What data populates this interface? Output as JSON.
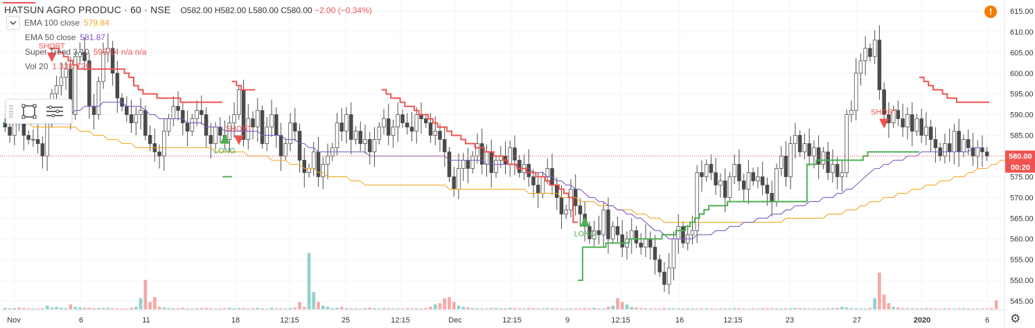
{
  "header": {
    "title": "HATSUN AGRO PRODUC · 60 · NSE",
    "open": "O582.00",
    "high": "H582.00",
    "low": "L580.00",
    "close": "C580.00",
    "change": "−2.00 (−0.34%)"
  },
  "indicators": [
    {
      "name": "EMA 100 close",
      "value": "579.84",
      "color": "#f5a623"
    },
    {
      "name": "EMA 50 close",
      "value": "581.87",
      "color": "#7e57c2"
    },
    {
      "name": "Super Trend 3 10",
      "value": "593.14  n/a  n/a",
      "color": "#ef5350"
    },
    {
      "name": "Vol 20",
      "value": "1.33K  729",
      "color": "#ef5350"
    }
  ],
  "price_axis": {
    "ticks": [
      "615.00",
      "610.00",
      "605.00",
      "600.00",
      "595.00",
      "590.00",
      "585.00",
      "580.00",
      "575.00",
      "570.00",
      "565.00",
      "560.00",
      "555.00",
      "550.00",
      "545.00"
    ],
    "last_price_label": "580.00",
    "countdown_label": "00:20",
    "last_price_color": "#ef5350"
  },
  "time_axis": {
    "labels": [
      "Nov",
      "6",
      "11",
      "18",
      "12:15",
      "25",
      "12:15",
      "Dec",
      "12:15",
      "9",
      "12:15",
      "16",
      "12:15",
      "23",
      "27",
      "2020",
      "6"
    ]
  },
  "signals": [
    {
      "label": "SHORT",
      "kind": "short",
      "color": "#ef5350"
    },
    {
      "label": "LONG",
      "kind": "long",
      "color": "#4caf50"
    },
    {
      "label": "SHORT",
      "kind": "short",
      "color": "#ef5350"
    },
    {
      "label": "LONG",
      "kind": "long",
      "color": "#4caf50"
    },
    {
      "label": "SHORT",
      "kind": "short",
      "color": "#ef5350"
    }
  ],
  "chart_data": {
    "type": "candlestick",
    "symbol": "HATSUN AGRO PRODUC",
    "interval": "60",
    "exchange": "NSE",
    "ylim": [
      543,
      617
    ],
    "last_price": 580.0,
    "up_color": "#26a69a",
    "down_color": "#ef5350",
    "candle_body_color": "#4a4a4a",
    "closes": [
      587,
      585,
      590,
      589,
      585,
      584,
      584,
      583,
      580,
      588,
      595,
      597,
      599,
      601,
      590,
      604,
      605,
      603,
      592,
      590,
      598,
      605,
      606,
      600,
      594,
      592,
      590,
      588,
      590,
      591,
      585,
      583,
      581,
      580,
      586,
      589,
      592,
      591,
      588,
      586,
      589,
      591,
      590,
      585,
      583,
      587,
      585,
      584,
      588,
      590,
      596,
      584,
      589,
      587,
      591,
      583,
      587,
      590,
      585,
      580,
      583,
      588,
      586,
      579,
      576,
      577,
      581,
      575,
      578,
      580,
      582,
      588,
      586,
      590,
      584,
      586,
      583,
      584,
      581,
      584,
      587,
      589,
      585,
      587,
      590,
      588,
      587,
      586,
      590,
      589,
      588,
      585,
      586,
      584,
      581,
      575,
      572,
      577,
      579,
      577,
      580,
      583,
      578,
      581,
      576,
      579,
      580,
      578,
      582,
      579,
      576,
      578,
      575,
      573,
      571,
      575,
      577,
      573,
      570,
      566,
      567,
      572,
      568,
      566,
      563,
      560,
      562,
      561,
      567,
      560,
      563,
      561,
      558,
      560,
      562,
      559,
      558,
      560,
      558,
      555,
      552,
      549,
      553,
      560,
      563,
      559,
      561,
      562,
      576,
      575,
      578,
      576,
      573,
      574,
      570,
      575,
      578,
      574,
      572,
      576,
      574,
      575,
      573,
      571,
      569,
      577,
      580,
      575,
      583,
      585,
      581,
      583,
      580,
      582,
      578,
      581,
      576,
      578,
      575,
      576,
      590,
      591,
      600,
      603,
      606,
      604,
      608,
      596,
      590,
      588,
      591,
      589,
      587,
      590,
      586,
      589,
      585,
      587,
      584,
      582,
      580,
      583,
      581,
      586,
      581,
      584,
      582,
      580,
      582,
      581,
      580
    ],
    "volumes": [
      120,
      80,
      90,
      150,
      100,
      80,
      70,
      60,
      90,
      300,
      150,
      200,
      120,
      90,
      400,
      200,
      150,
      130,
      120,
      90,
      100,
      110,
      120,
      90,
      80,
      70,
      60,
      130,
      200,
      900,
      2400,
      600,
      1000,
      200,
      150,
      100,
      90,
      80,
      120,
      70,
      60,
      90,
      110,
      100,
      80,
      60,
      70,
      90,
      130,
      80,
      110,
      100,
      60,
      90,
      110,
      80,
      60,
      120,
      90,
      80,
      70,
      100,
      140,
      600,
      200,
      4600,
      1400,
      600,
      300,
      200,
      100,
      120,
      200,
      90,
      80,
      70,
      60,
      110,
      130,
      90,
      80,
      100,
      90,
      80,
      70,
      60,
      90,
      70,
      80,
      60,
      110,
      200,
      400,
      500,
      900,
      1000,
      600,
      300,
      200,
      150,
      100,
      90,
      80,
      70,
      110,
      100,
      90,
      80,
      120,
      90,
      80,
      70,
      110,
      90,
      80,
      70,
      100,
      90,
      80,
      70,
      60,
      90,
      80,
      70,
      100,
      90,
      120,
      80,
      70,
      200,
      300,
      900,
      600,
      400,
      200,
      150,
      100,
      90,
      80,
      70,
      60,
      100,
      90,
      80,
      70,
      60,
      80,
      70,
      60,
      90,
      80,
      70,
      60,
      80,
      70,
      60,
      90,
      80,
      70,
      60,
      80,
      70,
      100,
      90,
      80,
      70,
      60,
      80,
      90,
      110,
      100,
      90,
      80,
      70,
      60,
      80,
      90,
      100,
      110,
      200,
      150,
      100,
      80,
      70,
      60,
      110,
      900,
      3000,
      1200,
      500,
      200,
      150,
      100,
      90,
      80,
      70,
      60,
      90,
      80,
      70,
      60,
      80,
      70,
      60,
      90,
      80,
      70,
      60,
      80,
      70,
      60,
      90,
      729
    ],
    "ema100": [
      590,
      589,
      589,
      588,
      588,
      588,
      587,
      587,
      587,
      587,
      587,
      587,
      587,
      587,
      587,
      587,
      586,
      586,
      586,
      585,
      585,
      585,
      584,
      584,
      584,
      583,
      583,
      583,
      582,
      582,
      582,
      582,
      582,
      582,
      582,
      582,
      582,
      582,
      582,
      582,
      582,
      582,
      582,
      582,
      582,
      581,
      581,
      581,
      581,
      581,
      581,
      581,
      580,
      580,
      580,
      580,
      580,
      579,
      579,
      579,
      579,
      578,
      578,
      578,
      577,
      577,
      577,
      576,
      576,
      575,
      575,
      575,
      575,
      575,
      574,
      574,
      574,
      573,
      573,
      573,
      573,
      573,
      573,
      573,
      573,
      573,
      573,
      573,
      573,
      573,
      573,
      573,
      573,
      573,
      573,
      572,
      572,
      572,
      572,
      572,
      572,
      572,
      572,
      572,
      572,
      572,
      572,
      572,
      572,
      572,
      572,
      572,
      571,
      571,
      571,
      571,
      571,
      571,
      571,
      570,
      570,
      570,
      570,
      569,
      569,
      569,
      569,
      568,
      568,
      568,
      568,
      567,
      567,
      567,
      567,
      566,
      566,
      566,
      565,
      565,
      565,
      564,
      564,
      564,
      564,
      564,
      564,
      564,
      564,
      564,
      564,
      564,
      564,
      564,
      564,
      564,
      564,
      564,
      564,
      564,
      564,
      564,
      564,
      564,
      564,
      564,
      564,
      565,
      565,
      565,
      565,
      565,
      565,
      565,
      565,
      565,
      566,
      566,
      566,
      566,
      567,
      567,
      567,
      568,
      568,
      569,
      569,
      569,
      570,
      570,
      570,
      571,
      571,
      571,
      572,
      572,
      572,
      573,
      573,
      573,
      574,
      574,
      574,
      575,
      575,
      575,
      576,
      576,
      577,
      577,
      577,
      578,
      578,
      579,
      579,
      580
    ],
    "ema50": [
      592,
      591,
      591,
      590,
      590,
      589,
      589,
      589,
      588,
      588,
      589,
      589,
      589,
      590,
      590,
      591,
      591,
      592,
      592,
      592,
      592,
      593,
      593,
      593,
      593,
      593,
      592,
      592,
      592,
      592,
      591,
      590,
      590,
      589,
      589,
      589,
      589,
      589,
      589,
      588,
      588,
      588,
      588,
      587,
      587,
      587,
      587,
      586,
      586,
      586,
      586,
      586,
      586,
      586,
      586,
      585,
      585,
      585,
      585,
      585,
      584,
      584,
      584,
      583,
      583,
      582,
      582,
      581,
      581,
      581,
      581,
      581,
      581,
      581,
      581,
      581,
      581,
      581,
      580,
      580,
      580,
      580,
      580,
      580,
      580,
      580,
      580,
      580,
      580,
      580,
      580,
      580,
      580,
      580,
      580,
      579,
      579,
      579,
      579,
      579,
      579,
      579,
      579,
      578,
      578,
      578,
      578,
      578,
      578,
      578,
      577,
      577,
      577,
      576,
      576,
      576,
      575,
      575,
      574,
      574,
      573,
      573,
      572,
      572,
      571,
      570,
      570,
      569,
      569,
      568,
      568,
      567,
      567,
      566,
      566,
      565,
      565,
      564,
      563,
      562,
      562,
      561,
      560,
      560,
      560,
      560,
      560,
      560,
      561,
      561,
      561,
      561,
      562,
      562,
      562,
      563,
      563,
      563,
      564,
      564,
      564,
      565,
      565,
      565,
      566,
      566,
      566,
      567,
      567,
      568,
      568,
      568,
      569,
      569,
      569,
      570,
      570,
      570,
      571,
      571,
      572,
      572,
      573,
      574,
      575,
      576,
      577,
      577,
      578,
      578,
      579,
      579,
      579,
      580,
      580,
      580,
      581,
      581,
      581,
      581,
      581,
      581,
      581,
      581,
      581,
      581,
      581,
      582,
      582,
      582
    ],
    "supertrend_short_segments": [
      {
        "from": 0,
        "to": 6,
        "values": [
          617,
          617,
          617,
          617,
          617,
          617,
          617
        ]
      },
      {
        "from": 10,
        "to": 46,
        "values": [
          606,
          606,
          605,
          604,
          603,
          602,
          601,
          601,
          601,
          601,
          601,
          601,
          601,
          601,
          601,
          601,
          600,
          599,
          597,
          596,
          595,
          595,
          595,
          594,
          594,
          594,
          594,
          594,
          593,
          593,
          593,
          593,
          593,
          593,
          593,
          593,
          593
        ]
      },
      {
        "from": 49,
        "to": 53,
        "values": [
          598,
          597,
          596,
          596,
          596
        ]
      },
      {
        "from": 81,
        "to": 122,
        "values": [
          596,
          595,
          594,
          594,
          593,
          592,
          592,
          591,
          590,
          590,
          589,
          588,
          587,
          587,
          586,
          585,
          585,
          584,
          583,
          583,
          582,
          582,
          581,
          581,
          580,
          580,
          579,
          578,
          578,
          577,
          577,
          576,
          576,
          575,
          575,
          574,
          573,
          573,
          572,
          571,
          570,
          564
        ]
      },
      {
        "from": 196,
        "to": 210,
        "values": [
          599,
          598,
          597,
          596,
          596,
          595,
          594,
          594,
          593,
          593,
          593,
          593,
          593,
          593,
          593
        ]
      }
    ],
    "supertrend_long_segments": [
      {
        "from": 0,
        "to": 9,
        "values": [
          588,
          588,
          589,
          589,
          589,
          589,
          589,
          589,
          589,
          589
        ]
      },
      {
        "from": 47,
        "to": 48,
        "values": [
          575,
          575
        ]
      },
      {
        "from": 123,
        "to": 195,
        "values": [
          550,
          558,
          558,
          558,
          558,
          558,
          559,
          559,
          559,
          559,
          559,
          560,
          560,
          560,
          560,
          560,
          560,
          560,
          561,
          561,
          561,
          562,
          562,
          563,
          564,
          565,
          566,
          567,
          568,
          568,
          568,
          568,
          569,
          569,
          569,
          569,
          569,
          569,
          569,
          569,
          569,
          569,
          569,
          569,
          569,
          569,
          569,
          569,
          569,
          578,
          578,
          579,
          579,
          579,
          579,
          579,
          579,
          579,
          579,
          579,
          579,
          580,
          581,
          581,
          581,
          581,
          581,
          581,
          581,
          581,
          581,
          581,
          581
        ]
      }
    ],
    "volume_color_up": "#26a69a",
    "volume_color_down": "#ef5350",
    "x_labels": [
      "Nov",
      "6",
      "11",
      "18",
      "12:15",
      "25",
      "12:15",
      "Dec",
      "12:15",
      "9",
      "12:15",
      "16",
      "12:15",
      "23",
      "27",
      "2020",
      "6"
    ],
    "y_ticks": [
      615,
      610,
      605,
      600,
      595,
      590,
      585,
      580,
      575,
      570,
      565,
      560,
      555,
      550,
      545
    ],
    "grid": true
  }
}
